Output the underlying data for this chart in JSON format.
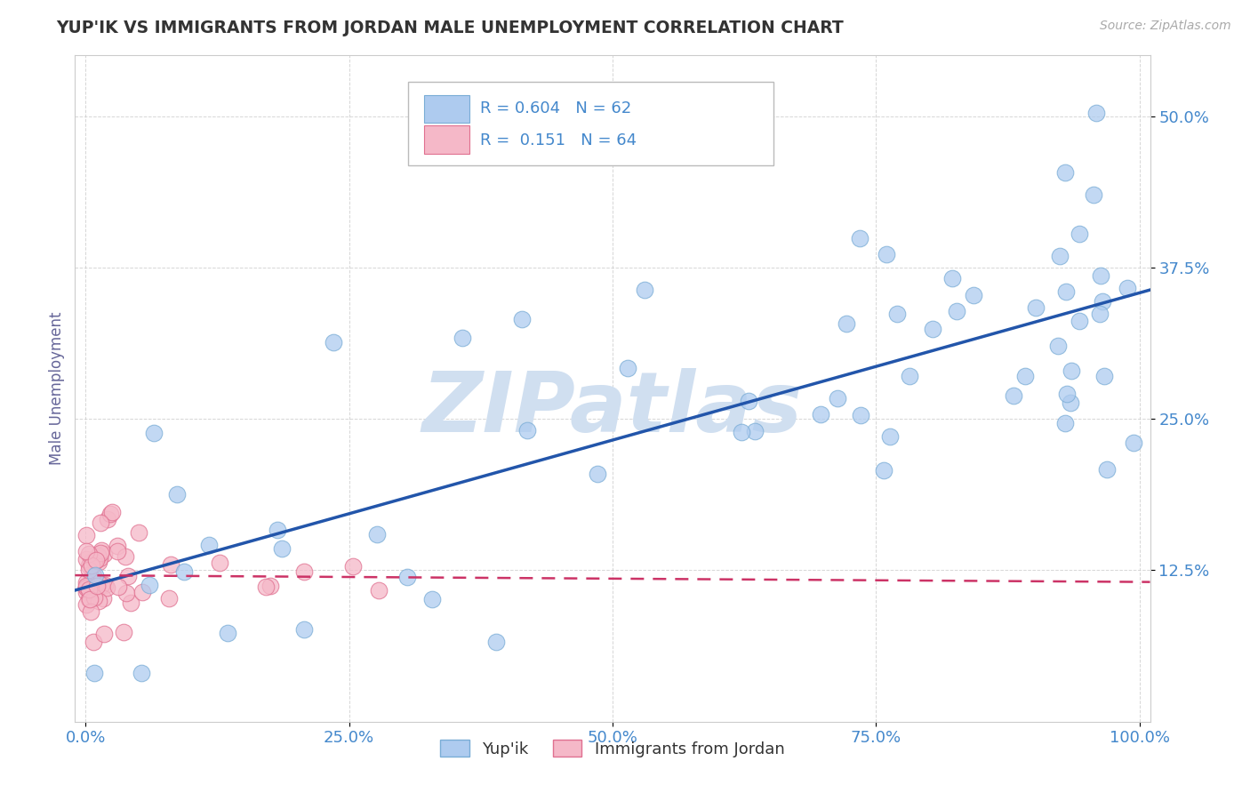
{
  "title": "YUP'IK VS IMMIGRANTS FROM JORDAN MALE UNEMPLOYMENT CORRELATION CHART",
  "source_text": "Source: ZipAtlas.com",
  "ylabel": "Male Unemployment",
  "xlim": [
    -0.01,
    1.01
  ],
  "ylim": [
    0.0,
    0.55
  ],
  "xticks": [
    0.0,
    0.25,
    0.5,
    0.75,
    1.0
  ],
  "xtick_labels": [
    "0.0%",
    "25.0%",
    "50.0%",
    "75.0%",
    "100.0%"
  ],
  "yticks": [
    0.125,
    0.25,
    0.375,
    0.5
  ],
  "ytick_labels": [
    "12.5%",
    "25.0%",
    "37.5%",
    "50.0%"
  ],
  "legend_R1": "0.604",
  "legend_N1": "62",
  "legend_R2": "0.151",
  "legend_N2": "64",
  "series1_color": "#aecbef",
  "series1_edge": "#7aadd6",
  "series2_color": "#f5b8c8",
  "series2_edge": "#e07090",
  "line1_color": "#2255aa",
  "line2_color": "#cc3366",
  "background_color": "#ffffff",
  "grid_color": "#cccccc",
  "watermark_text": "ZIPatlas",
  "watermark_color": "#d0dff0",
  "title_color": "#333333",
  "tick_label_color": "#4488cc",
  "ylabel_color": "#666699",
  "source_color": "#aaaaaa"
}
